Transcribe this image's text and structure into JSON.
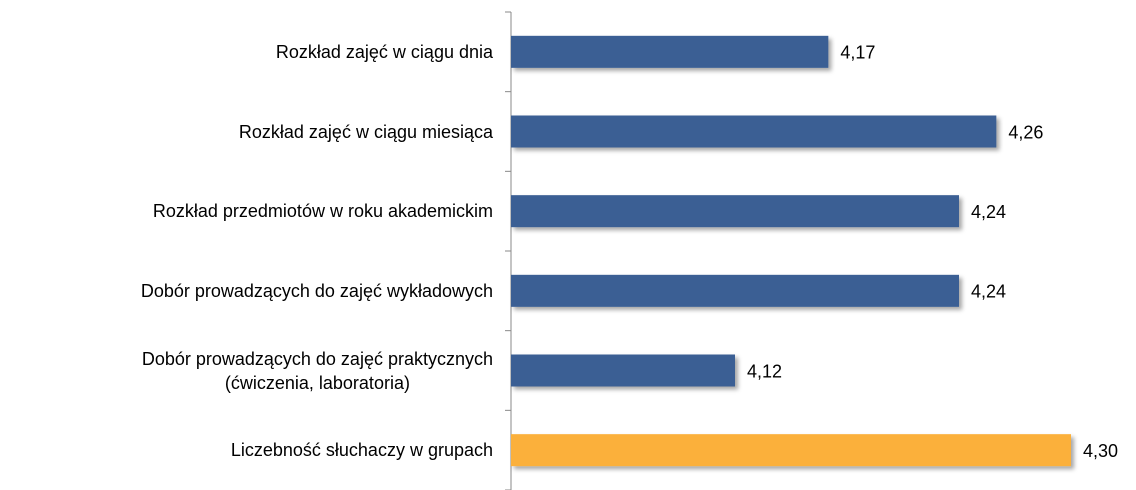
{
  "chart_data": {
    "type": "barh",
    "categories": [
      "Rozkład zajęć w ciągu dnia",
      "Rozkład zajęć w ciągu miesiąca",
      "Rozkład przedmiotów w roku akademickim",
      "Dobór prowadzących do zajęć wykładowych",
      "Dobór prowadzących do zajęć praktycznych\n(ćwiczenia, laboratoria)",
      "Liczebność słuchaczy w grupach"
    ],
    "values": [
      4.17,
      4.26,
      4.24,
      4.24,
      4.12,
      4.3
    ],
    "value_labels": [
      "4,17",
      "4,26",
      "4,24",
      "4,24",
      "4,12",
      "4,30"
    ],
    "colors": [
      "#3b5f94",
      "#3b5f94",
      "#3b5f94",
      "#3b5f94",
      "#3b5f94",
      "#fbb03b"
    ],
    "xlim": [
      4.0,
      4.3
    ]
  }
}
